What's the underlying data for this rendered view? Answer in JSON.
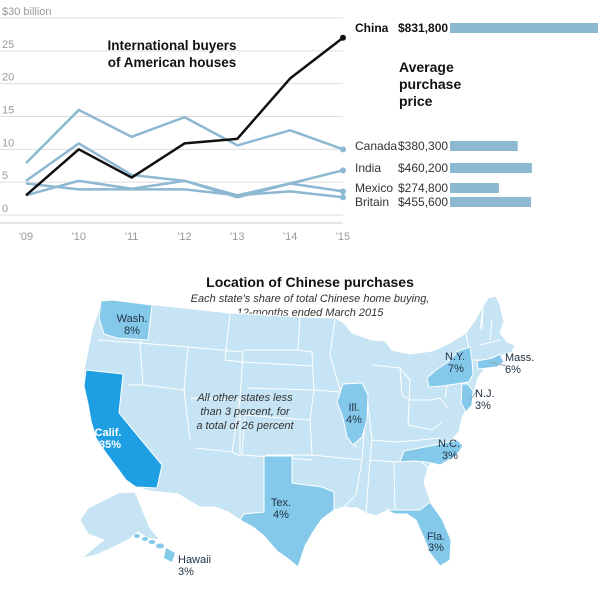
{
  "chart_data": [
    {
      "type": "line",
      "title": "International buyers of American houses",
      "title_lines": [
        "International buyers",
        "of American houses"
      ],
      "ylim": [
        0,
        30
      ],
      "yticks": [
        "0",
        "5",
        "10",
        "15",
        "20",
        "25",
        "$30 billion"
      ],
      "x": [
        "'09",
        "'10",
        "'11",
        "'12",
        "'13",
        "'14",
        "'15"
      ],
      "series": [
        {
          "name": "China",
          "values": [
            3.0,
            10.0,
            5.7,
            10.9,
            11.6,
            20.8,
            27.0
          ],
          "color": "#111111",
          "emphasis": true
        },
        {
          "name": "Canada",
          "values": [
            7.9,
            16.0,
            11.9,
            14.9,
            10.6,
            12.9,
            10.0
          ],
          "color": "#8db8d1"
        },
        {
          "name": "India",
          "values": [
            5.2,
            10.9,
            6.1,
            5.2,
            3.0,
            4.8,
            6.8
          ],
          "color": "#8db8d1"
        },
        {
          "name": "Mexico",
          "values": [
            3.0,
            5.2,
            4.0,
            5.2,
            2.7,
            4.8,
            3.6
          ],
          "color": "#8db8d1"
        },
        {
          "name": "Britain",
          "values": [
            4.8,
            3.9,
            3.9,
            3.9,
            3.0,
            3.6,
            2.7
          ],
          "color": "#8db8d1"
        }
      ]
    },
    {
      "type": "bar",
      "title": "Average purchase price",
      "title_lines": [
        "Average",
        "purchase",
        "price"
      ],
      "categories": [
        "China",
        "Canada",
        "India",
        "Mexico",
        "Britain"
      ],
      "values": [
        831800,
        380300,
        460200,
        274800,
        455600
      ],
      "labels": [
        "$831,800",
        "$380,300",
        "$460,200",
        "$274,800",
        "$455,600"
      ],
      "color": "#8db8d1"
    }
  ],
  "map": {
    "title": "Location of Chinese purchases",
    "subtitle_lines": [
      "Each state's share of total Chinese home buying,",
      "12-months ended March 2015"
    ],
    "note_lines": [
      "All other states less",
      "than 3 percent, for",
      "a total of 26 percent"
    ],
    "colors": {
      "land": "#c6e4f3",
      "mid": "#85c9ea",
      "high": "#1e9fe3",
      "border": "#ffffff",
      "line": "#8aa9bb"
    },
    "states": [
      {
        "name": "Calif.",
        "share": "35%"
      },
      {
        "name": "Wash.",
        "share": "8%"
      },
      {
        "name": "N.Y.",
        "share": "7%"
      },
      {
        "name": "Mass.",
        "share": "6%"
      },
      {
        "name": "Tex.",
        "share": "4%"
      },
      {
        "name": "Ill.",
        "share": "4%"
      },
      {
        "name": "N.J.",
        "share": "3%"
      },
      {
        "name": "N.C.",
        "share": "3%"
      },
      {
        "name": "Fla.",
        "share": "3%"
      },
      {
        "name": "Hawaii",
        "share": "3%"
      }
    ]
  }
}
